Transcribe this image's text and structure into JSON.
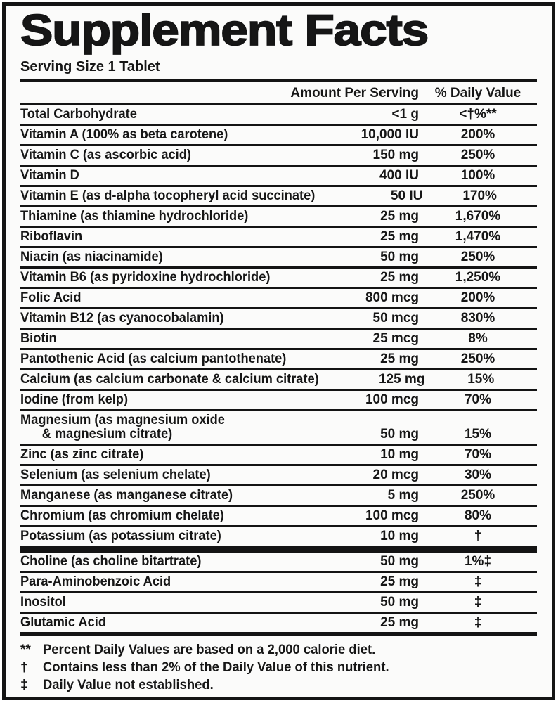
{
  "label": {
    "title": "Supplement Facts",
    "serving_size": "Serving Size 1 Tablet",
    "columns": {
      "amount": "Amount Per Serving",
      "daily_value": "% Daily Value"
    },
    "sections": [
      {
        "rows": [
          {
            "name": "Total Carbohydrate",
            "amount": "<1 g",
            "dv": "<†%**"
          },
          {
            "name": "Vitamin A (100% as beta carotene)",
            "amount": "10,000 IU",
            "dv": "200%"
          },
          {
            "name": "Vitamin C (as ascorbic acid)",
            "amount": "150 mg",
            "dv": "250%"
          },
          {
            "name": "Vitamin D",
            "amount": "400 IU",
            "dv": "100%"
          },
          {
            "name": "Vitamin E (as d-alpha tocopheryl acid succinate)",
            "amount": "50 IU",
            "dv": "170%"
          },
          {
            "name": "Thiamine (as thiamine hydrochloride)",
            "amount": "25 mg",
            "dv": "1,670%"
          },
          {
            "name": "Riboflavin",
            "amount": "25 mg",
            "dv": "1,470%"
          },
          {
            "name": "Niacin (as niacinamide)",
            "amount": "50 mg",
            "dv": "250%"
          },
          {
            "name": "Vitamin B6 (as pyridoxine hydrochloride)",
            "amount": "25 mg",
            "dv": "1,250%"
          },
          {
            "name": "Folic Acid",
            "amount": "800 mcg",
            "dv": "200%"
          },
          {
            "name": "Vitamin B12 (as cyanocobalamin)",
            "amount": "50 mcg",
            "dv": "830%"
          },
          {
            "name": "Biotin",
            "amount": "25 mcg",
            "dv": "8%"
          },
          {
            "name": "Pantothenic Acid (as calcium pantothenate)",
            "amount": "25 mg",
            "dv": "250%"
          },
          {
            "name": "Calcium (as calcium carbonate & calcium citrate)",
            "amount": "125 mg",
            "dv": "15%"
          },
          {
            "name": "Iodine (from kelp)",
            "amount": "100 mcg",
            "dv": "70%"
          },
          {
            "name": "Magnesium (as magnesium oxide",
            "name_line2": "& magnesium citrate)",
            "amount": "50 mg",
            "dv": "15%"
          },
          {
            "name": "Zinc (as zinc citrate)",
            "amount": "10 mg",
            "dv": "70%"
          },
          {
            "name": "Selenium (as selenium chelate)",
            "amount": "20 mcg",
            "dv": "30%"
          },
          {
            "name": "Manganese (as manganese citrate)",
            "amount": "5 mg",
            "dv": "250%"
          },
          {
            "name": "Chromium (as chromium chelate)",
            "amount": "100 mcg",
            "dv": "80%"
          },
          {
            "name": "Potassium (as potassium citrate)",
            "amount": "10 mg",
            "dv": "†"
          }
        ]
      },
      {
        "rows": [
          {
            "name": "Choline (as choline bitartrate)",
            "amount": "50 mg",
            "dv": "1%‡"
          },
          {
            "name": "Para-Aminobenzoic Acid",
            "amount": "25 mg",
            "dv": "‡"
          },
          {
            "name": "Inositol",
            "amount": "50 mg",
            "dv": "‡"
          },
          {
            "name": "Glutamic Acid",
            "amount": "25 mg",
            "dv": "‡"
          }
        ]
      }
    ],
    "footnotes": [
      {
        "symbol": "**",
        "text": "Percent Daily Values are based on a 2,000 calorie diet."
      },
      {
        "symbol": "†",
        "text": "Contains less than 2% of the Daily Value of this nutrient."
      },
      {
        "symbol": "‡",
        "text": "Daily Value not established."
      }
    ],
    "colors": {
      "text": "#161616",
      "background": "#fbfbfa",
      "rule": "#141414"
    }
  }
}
